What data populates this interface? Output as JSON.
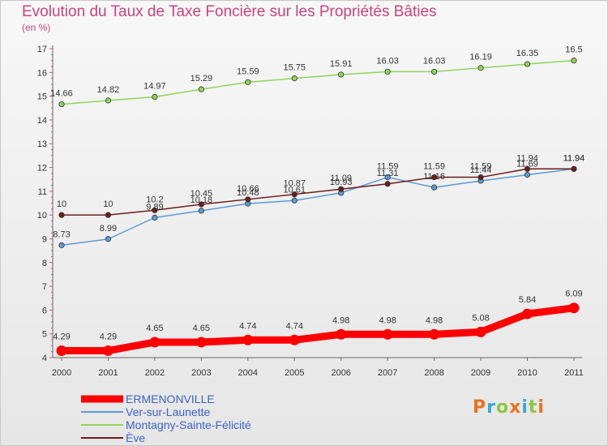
{
  "title": "Evolution du Taux de Taxe Foncière sur les Propriétés Bâties",
  "unit": "(en %)",
  "logo": {
    "letters": [
      "P",
      "r",
      "o",
      "x",
      "i",
      "t",
      "i"
    ],
    "colors": [
      "#e8731c",
      "#3aa6d6",
      "#8cc63f",
      "#e8731c",
      "#3aa6d6",
      "#8cc63f",
      "#e8731c"
    ]
  },
  "chart_data": {
    "type": "line",
    "title": "Evolution du Taux de Taxe Foncière sur les Propriétés Bâties",
    "ylabel": "(en %)",
    "xlabel": "",
    "x": [
      "2000",
      "2001",
      "2002",
      "2003",
      "2004",
      "2005",
      "2006",
      "2007",
      "2008",
      "2009",
      "2010",
      "2011"
    ],
    "ylim": [
      4,
      17
    ],
    "yticks": [
      "4",
      "5",
      "6",
      "7",
      "8",
      "9",
      "10",
      "11",
      "12",
      "13",
      "14",
      "15",
      "16",
      "17"
    ],
    "grid": false,
    "legend_position": "bottom-left",
    "series": [
      {
        "name": "ERMENONVILLE",
        "color": "#ff0000",
        "values": [
          4.29,
          4.29,
          4.65,
          4.65,
          4.74,
          4.74,
          4.98,
          4.98,
          4.98,
          5.08,
          5.84,
          6.09
        ],
        "labels": [
          "4.29",
          "4.29",
          "4.65",
          "4.65",
          "4.74",
          "4.74",
          "4.98",
          "4.98",
          "4.98",
          "5.08",
          "5.84",
          "6.09"
        ]
      },
      {
        "name": "Ver-sur-Launette",
        "color": "#5a9bd5",
        "values": [
          8.73,
          8.99,
          9.89,
          10.18,
          10.48,
          10.61,
          10.93,
          11.59,
          11.16,
          11.44,
          11.69,
          11.94
        ],
        "labels": [
          "8.73",
          "8.99",
          "9.89",
          "10.18",
          "10.48",
          "10.61",
          "10.93",
          "11.59",
          "11.16",
          "11.44",
          "11.69",
          "11.94"
        ]
      },
      {
        "name": "Montagny-Sainte-Félicité",
        "color": "#8fd45a",
        "values": [
          14.66,
          14.82,
          14.97,
          15.29,
          15.59,
          15.75,
          15.91,
          16.03,
          16.03,
          16.19,
          16.35,
          16.5
        ],
        "labels": [
          "14.66",
          "14.82",
          "14.97",
          "15.29",
          "15.59",
          "15.75",
          "15.91",
          "16.03",
          "16.03",
          "16.19",
          "16.35",
          "16.5"
        ]
      },
      {
        "name": "Ève",
        "color": "#6b1c1c",
        "values": [
          10,
          10,
          10.2,
          10.45,
          10.66,
          10.87,
          11.09,
          11.31,
          11.59,
          11.59,
          11.94,
          11.94
        ],
        "labels": [
          "10",
          "10",
          "10.2",
          "10.45",
          "10.66",
          "10.87",
          "11.09",
          "11.31",
          "11.59",
          "11.59",
          "11.94",
          "11.94"
        ]
      }
    ]
  }
}
